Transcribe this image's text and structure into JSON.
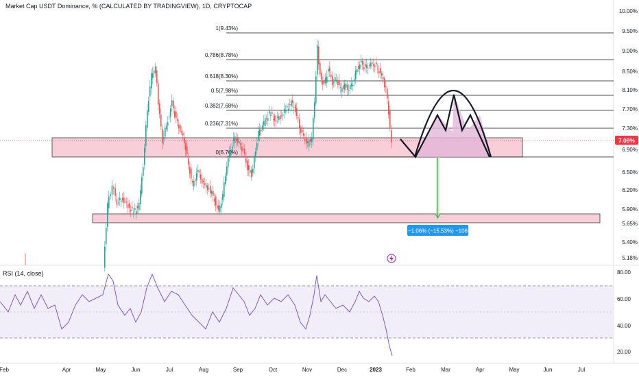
{
  "header": {
    "title": "Market Cap USDT Dominance, % (CALCULATED BY TRADINGVIEW), 1D, CRYPTOCAP"
  },
  "main_axis": {
    "ticks": [
      "10.00%",
      "9.50%",
      "9.00%",
      "8.50%",
      "8.10%",
      "7.70%",
      "7.30%",
      "6.90%",
      "6.50%",
      "6.20%",
      "5.90%",
      "5.65%",
      "5.40%",
      "5.18%"
    ],
    "current_price": "7.09%"
  },
  "fib_levels": [
    {
      "label": "1(9.43%)"
    },
    {
      "label": "0.786(8.78%)"
    },
    {
      "label": "0.618(8.30%)"
    },
    {
      "label": "0.5(7.98%)"
    },
    {
      "label": "0.382(7.68%)"
    },
    {
      "label": "0.236(7.31%)"
    },
    {
      "label": "0(6.76%)"
    }
  ],
  "measure": {
    "label": "−1.06% (−15.53%) −106"
  },
  "rsi": {
    "title": "RSI (14, close)",
    "ticks": [
      "80.00",
      "60.00",
      "40.00",
      "20.00"
    ]
  },
  "time_axis": {
    "labels": [
      "Feb",
      "Apr",
      "May",
      "Jun",
      "Jul",
      "Aug",
      "Sep",
      "Oct",
      "Nov",
      "Dec",
      "2023",
      "Feb",
      "Mar",
      "Apr",
      "May",
      "Jun",
      "Jul"
    ]
  },
  "colors": {
    "up": "#26a69a",
    "down": "#ef5350",
    "zone_fill": "#f8c9d4",
    "pattern_fill": "#e2b7d8",
    "rsi_line": "#7e57c2",
    "rsi_band": "#ede7f6",
    "price_badge": "#f23645",
    "measure_badge": "#2196f3",
    "arrow": "#4caf50"
  },
  "icons": {
    "lightning": "lightning-icon"
  }
}
